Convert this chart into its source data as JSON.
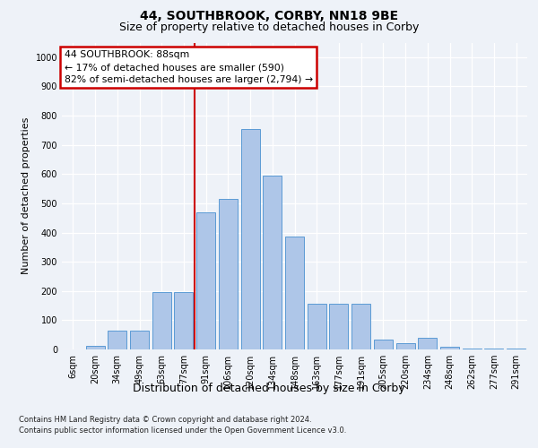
{
  "title_line1": "44, SOUTHBROOK, CORBY, NN18 9BE",
  "title_line2": "Size of property relative to detached houses in Corby",
  "xlabel": "Distribution of detached houses by size in Corby",
  "ylabel": "Number of detached properties",
  "categories": [
    "6sqm",
    "20sqm",
    "34sqm",
    "49sqm",
    "63sqm",
    "77sqm",
    "91sqm",
    "106sqm",
    "120sqm",
    "134sqm",
    "148sqm",
    "163sqm",
    "177sqm",
    "191sqm",
    "205sqm",
    "220sqm",
    "234sqm",
    "248sqm",
    "262sqm",
    "277sqm",
    "291sqm"
  ],
  "values": [
    0,
    12,
    65,
    65,
    195,
    195,
    470,
    515,
    755,
    595,
    385,
    155,
    155,
    155,
    35,
    22,
    40,
    10,
    3,
    2,
    2
  ],
  "bar_color": "#aec6e8",
  "bar_edge_color": "#5b9bd5",
  "vline_x_index": 6,
  "vline_color": "#cc0000",
  "annotation_text": "44 SOUTHBROOK: 88sqm\n← 17% of detached houses are smaller (590)\n82% of semi-detached houses are larger (2,794) →",
  "annotation_box_color": "#ffffff",
  "annotation_box_edge": "#cc0000",
  "ylim": [
    0,
    1050
  ],
  "yticks": [
    0,
    100,
    200,
    300,
    400,
    500,
    600,
    700,
    800,
    900,
    1000
  ],
  "footer_line1": "Contains HM Land Registry data © Crown copyright and database right 2024.",
  "footer_line2": "Contains public sector information licensed under the Open Government Licence v3.0.",
  "background_color": "#eef2f8",
  "plot_bg_color": "#eef2f8",
  "title1_fontsize": 10,
  "title2_fontsize": 9,
  "ylabel_fontsize": 8,
  "xlabel_fontsize": 9,
  "tick_fontsize": 7,
  "footer_fontsize": 6
}
